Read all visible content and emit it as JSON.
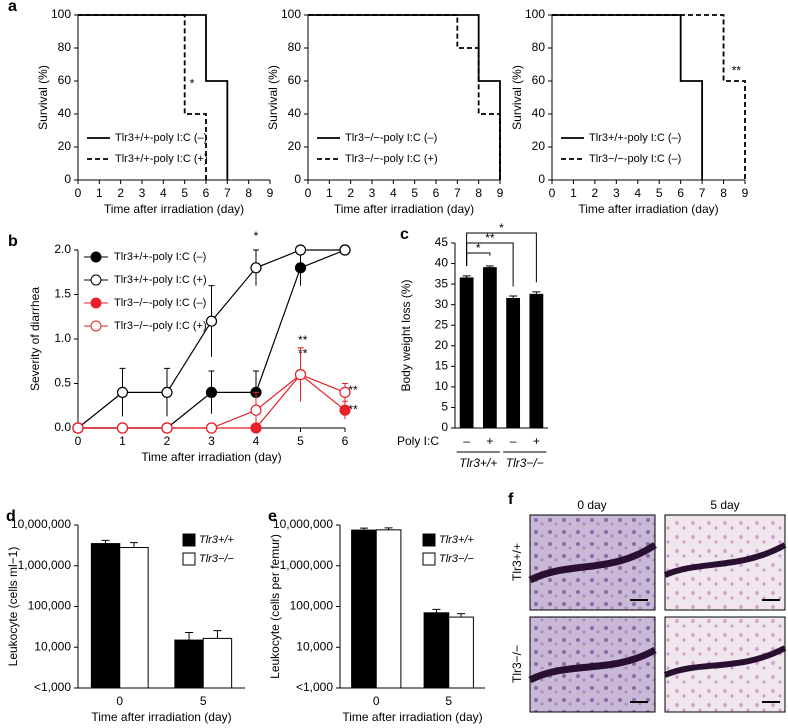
{
  "chart_data": [
    {
      "panel": "a",
      "type": "step",
      "ylabel": "Survival (%)",
      "xlabel": "Time after irradiation (day)",
      "xlim": [
        0,
        9
      ],
      "xticks": [
        0,
        1,
        2,
        3,
        4,
        5,
        6,
        7,
        8,
        9
      ],
      "ylim": [
        0,
        100
      ],
      "yticks": [
        0,
        20,
        40,
        60,
        80,
        100
      ],
      "series": [
        {
          "name": "Tlr3+/+-poly I:C (–)",
          "color": "#000000",
          "dash": false,
          "x": [
            0,
            6,
            7
          ],
          "values": [
            100,
            60,
            0
          ]
        },
        {
          "name": "Tlr3+/+-poly I:C (+)",
          "color": "#000000",
          "dash": true,
          "x": [
            0,
            5,
            6
          ],
          "values": [
            100,
            40,
            0
          ]
        }
      ],
      "annotations": [
        "*"
      ]
    },
    {
      "type": "step",
      "ylabel": "Survival (%)",
      "xlabel": "Time after irradiation (day)",
      "xlim": [
        0,
        9
      ],
      "xticks": [
        0,
        1,
        2,
        3,
        4,
        5,
        6,
        7,
        8,
        9
      ],
      "ylim": [
        0,
        100
      ],
      "yticks": [
        0,
        20,
        40,
        60,
        80,
        100
      ],
      "series": [
        {
          "name": "Tlr3−/−-poly I:C (–)",
          "color": "#000000",
          "dash": false,
          "x": [
            0,
            8,
            9
          ],
          "values": [
            100,
            60,
            0
          ]
        },
        {
          "name": "Tlr3−/−-poly I:C (+)",
          "color": "#000000",
          "dash": true,
          "x": [
            0,
            7,
            8,
            9
          ],
          "values": [
            100,
            80,
            40,
            0
          ]
        }
      ]
    },
    {
      "type": "step",
      "ylabel": "Survival (%)",
      "xlabel": "Time after irradiation (day)",
      "xlim": [
        0,
        9
      ],
      "xticks": [
        0,
        1,
        2,
        3,
        4,
        5,
        6,
        7,
        8,
        9
      ],
      "ylim": [
        0,
        100
      ],
      "yticks": [
        0,
        20,
        40,
        60,
        80,
        100
      ],
      "series": [
        {
          "name": "Tlr3+/+-poly I:C (–)",
          "color": "#000000",
          "dash": false,
          "x": [
            0,
            6,
            7
          ],
          "values": [
            100,
            60,
            0
          ]
        },
        {
          "name": "Tlr3−/−-poly I:C (–)",
          "color": "#000000",
          "dash": true,
          "x": [
            0,
            8,
            9
          ],
          "values": [
            100,
            60,
            0
          ]
        }
      ],
      "annotations": [
        "**"
      ]
    },
    {
      "panel": "b",
      "type": "line",
      "ylabel": "Severity of diarrhea",
      "xlabel": "Time after irradiation (day)",
      "x": [
        0,
        1,
        2,
        3,
        4,
        5,
        6
      ],
      "xlim": [
        0,
        6
      ],
      "xticks": [
        0,
        1,
        2,
        3,
        4,
        5,
        6
      ],
      "ylim": [
        0,
        2
      ],
      "yticks": [
        {
          "value": 0,
          "label": "0.0"
        },
        0.5,
        {
          "value": 1,
          "label": "1.0"
        },
        1.5,
        {
          "value": 2,
          "label": "2.0"
        }
      ],
      "series": [
        {
          "name": "Tlr3+/+-poly I:C (–)",
          "color": "#000000",
          "filled": true,
          "values": [
            0,
            0,
            0,
            0.4,
            0.4,
            1.8,
            2.0
          ],
          "errors": [
            0,
            0,
            0,
            0.24,
            0.24,
            0.2,
            0
          ]
        },
        {
          "name": "Tlr3+/+-poly I:C (+)",
          "color": "#000000",
          "filled": false,
          "values": [
            0,
            0.4,
            0.4,
            1.2,
            1.8,
            2.0,
            2.0
          ],
          "errors": [
            0,
            0.27,
            0.27,
            0.4,
            0.2,
            0,
            0
          ]
        },
        {
          "name": "Tlr3−/−-poly I:C (–)",
          "color": "#e8202a",
          "filled": true,
          "values": [
            0,
            0,
            0,
            0,
            0,
            0.6,
            0.2
          ],
          "errors": [
            0,
            0,
            0,
            0,
            0,
            0.3,
            0.1
          ]
        },
        {
          "name": "Tlr3−/−-poly I:C (+)",
          "color": "#e8202a",
          "filled": false,
          "values": [
            0,
            0,
            0,
            0,
            0.2,
            0.6,
            0.4
          ],
          "errors": [
            0,
            0,
            0,
            0,
            0.2,
            0.3,
            0.1
          ]
        }
      ],
      "annotations": [
        "*",
        "**",
        "**",
        "**",
        "**"
      ]
    },
    {
      "panel": "c",
      "type": "bar",
      "ylabel": "Body weight loss (%)",
      "row_label": "Poly I:C",
      "categories": [
        "–",
        "+",
        "–",
        "+"
      ],
      "groups": [
        "Tlr3+/+",
        "Tlr3−/−"
      ],
      "values": [
        36.5,
        39,
        31.5,
        32.5
      ],
      "errors": [
        0.5,
        0.4,
        0.6,
        0.6
      ],
      "color": "#000000",
      "ylim": [
        0,
        45
      ],
      "yticks": [
        0,
        5,
        10,
        15,
        20,
        25,
        30,
        35,
        40,
        45
      ],
      "annotations": [
        "*",
        "**",
        "*"
      ]
    },
    {
      "panel": "d",
      "type": "bar",
      "log": true,
      "ylabel": "Leukocyte (cells ml−1)",
      "xlabel": "Time after irradiation (day)",
      "categories": [
        "0",
        "5"
      ],
      "ylim": [
        1000,
        10000000
      ],
      "yticks": [
        {
          "value": 1000,
          "label": "<1,000"
        },
        {
          "value": 10000,
          "label": "10,000"
        },
        {
          "value": 100000,
          "label": "100,000"
        },
        {
          "value": 1000000,
          "label": "1,000,000"
        },
        {
          "value": 10000000,
          "label": "10,000,000"
        }
      ],
      "series": [
        {
          "name": "Tlr3+/+",
          "color": "#000000",
          "values": [
            3500000,
            15000
          ],
          "errors": [
            700000,
            8000
          ]
        },
        {
          "name": "Tlr3−/−",
          "color": "#ffffff",
          "values": [
            2800000,
            16500
          ],
          "errors": [
            900000,
            9000
          ]
        }
      ]
    },
    {
      "panel": "e",
      "type": "bar",
      "log": true,
      "ylabel": "Leukocyte (cells per femur)",
      "xlabel": "Time after irradiation (day)",
      "categories": [
        "0",
        "5"
      ],
      "ylim": [
        1000,
        10000000
      ],
      "yticks": [
        {
          "value": 1000,
          "label": "<1,000"
        },
        {
          "value": 10000,
          "label": "10,000"
        },
        {
          "value": 100000,
          "label": "100,000"
        },
        {
          "value": 1000000,
          "label": "1,000,000"
        },
        {
          "value": 10000000,
          "label": "10,000,000"
        }
      ],
      "series": [
        {
          "name": "Tlr3+/+",
          "color": "#000000",
          "values": [
            7500000,
            70000
          ],
          "errors": [
            900000,
            15000
          ]
        },
        {
          "name": "Tlr3−/−",
          "color": "#ffffff",
          "values": [
            7600000,
            55000
          ],
          "errors": [
            900000,
            12000
          ]
        }
      ]
    }
  ],
  "histology": {
    "panel": "f",
    "columns": [
      "0 day",
      "5 day"
    ],
    "rows": [
      "Tlr3+/+",
      "Tlr3−/−"
    ]
  }
}
